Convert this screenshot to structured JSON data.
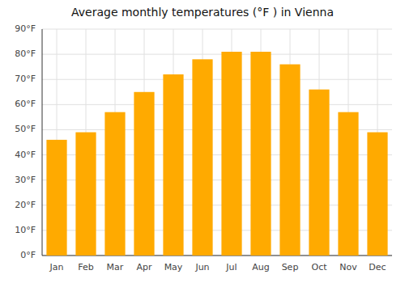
{
  "chart_data": {
    "type": "bar",
    "title": "Average monthly temperatures (°F ) in Vienna",
    "categories": [
      "Jan",
      "Feb",
      "Mar",
      "Apr",
      "May",
      "Jun",
      "Jul",
      "Aug",
      "Sep",
      "Oct",
      "Nov",
      "Dec"
    ],
    "values": [
      46,
      49,
      57,
      65,
      72,
      78,
      81,
      81,
      76,
      66,
      57,
      49
    ],
    "color": "#FFAA00",
    "ylim": [
      0,
      90
    ],
    "yticks": [
      {
        "value": 0,
        "label": "0°F"
      },
      {
        "value": 10,
        "label": "10°F"
      },
      {
        "value": 20,
        "label": "20°F"
      },
      {
        "value": 30,
        "label": "30°F"
      },
      {
        "value": 40,
        "label": "40°F"
      },
      {
        "value": 50,
        "label": "50°F"
      },
      {
        "value": 60,
        "label": "60°F"
      },
      {
        "value": 70,
        "label": "70°F"
      },
      {
        "value": 80,
        "label": "80°F"
      },
      {
        "value": 90,
        "label": "90°F"
      }
    ],
    "grid": true
  }
}
